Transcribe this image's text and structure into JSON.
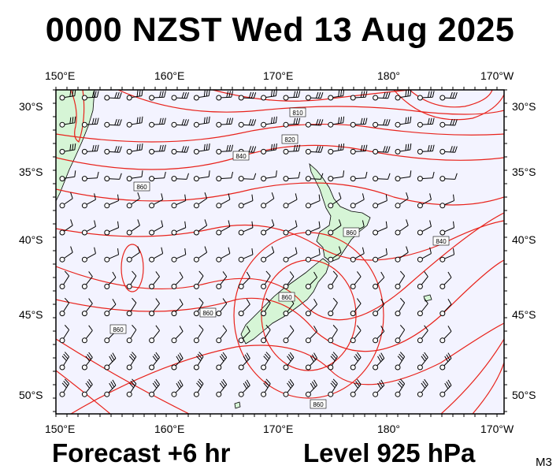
{
  "header": {
    "title": "0000 NZST Wed 13 Aug 2025"
  },
  "footer": {
    "forecast": "Forecast +6 hr",
    "level": "Level 925 hPa",
    "model": "M3"
  },
  "map": {
    "top_lon_labels": [
      "150°E",
      "160°E",
      "170°E",
      "180°",
      "170°W"
    ],
    "bottom_lon_labels": [
      "150°E",
      "160°E",
      "170°E",
      "180°",
      "170°W"
    ],
    "left_lat_labels": [
      "30°S",
      "35°S",
      "40°S",
      "45°S",
      "50°S"
    ],
    "right_lat_labels": [
      "30°S",
      "35°S",
      "40°S",
      "45°S",
      "50°S"
    ],
    "contour_labels": [
      "810",
      "820",
      "840",
      "860",
      "860",
      "860",
      "860",
      "860",
      "840",
      "860"
    ],
    "colors": {
      "ocean": "#f3f3ff",
      "land": "#d6f5d6",
      "contour": "#e8231c",
      "barb": "#000000"
    }
  }
}
